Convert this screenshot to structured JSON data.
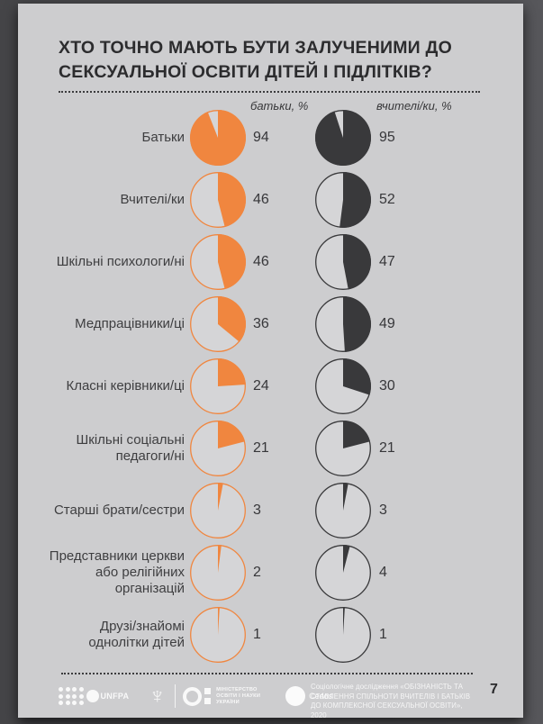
{
  "page": {
    "title": "ХТО ТОЧНО МАЮТЬ БУТИ ЗАЛУЧЕНИМИ ДО СЕКСУАЛЬНОЇ ОСВІТИ ДІТЕЙ І ПІДЛІТКІВ?"
  },
  "chart_data": {
    "type": "pie",
    "title": "ХТО ТОЧНО МАЮТЬ БУТИ ЗАЛУЧЕНИМИ ДО СЕКСУАЛЬНОЇ ОСВІТИ ДІТЕЙ І ПІДЛІТКІВ?",
    "unit": "%",
    "value_range": [
      0,
      100
    ],
    "legend_position": "column-headers",
    "categories": [
      "Батьки",
      "Вчителі/ки",
      "Шкільні психологи/ні",
      "Медпрацівники/ці",
      "Класні керівники/ці",
      "Шкільні соціальні педагоги/ні",
      "Старші брати/сестри",
      "Представники церкви або релігійних організацій",
      "Друзі/знайомі однолітки дітей"
    ],
    "series": [
      {
        "name": "батьки, %",
        "color": "#f0863f",
        "values": [
          94,
          46,
          46,
          36,
          24,
          21,
          3,
          2,
          1
        ]
      },
      {
        "name": "вчителі/ки, %",
        "color": "#39393b",
        "values": [
          95,
          52,
          47,
          49,
          30,
          21,
          3,
          4,
          1
        ]
      }
    ],
    "pie_style": {
      "start_angle": "12-oclock",
      "direction": "clockwise",
      "empty_fill": "#d5d5d7",
      "outline_width": 1.3
    }
  },
  "footer": {
    "logos": {
      "unfpa": "UNFPA",
      "ministry_lines": [
        "МІНІСТЕРСТВО",
        "ОСВІТИ І НАУКИ",
        "УКРАЇНИ"
      ],
      "cedos": "Cedos"
    },
    "source_lines": [
      "Соціологічне дослідження «ОБІЗНАНІСТЬ ТА",
      "СТАВЛЕННЯ СПІЛЬНОТИ ВЧИТЕЛІВ І БАТЬКІВ",
      "ДО КОМПЛЕКСНОЇ СЕКСУАЛЬНОЇ ОСВІТИ», 2020"
    ],
    "page_number": "7"
  }
}
